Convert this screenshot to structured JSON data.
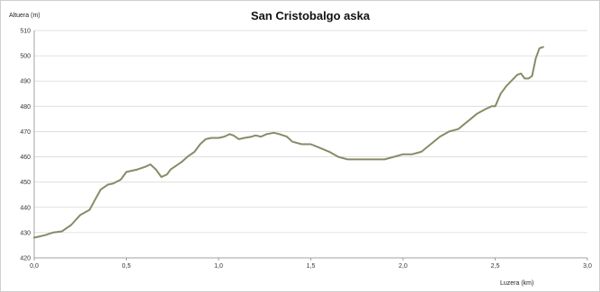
{
  "chart_data": {
    "type": "line",
    "title": "San Cristobalgo aska",
    "ylabel": "Altuera (m)",
    "xlabel": "Luzera (km)",
    "xlim": [
      0,
      3
    ],
    "ylim": [
      420,
      510
    ],
    "x_ticks": [
      "0,0",
      "0,5",
      "1,0",
      "1,5",
      "2,0",
      "2,5",
      "3,0"
    ],
    "x_tick_values": [
      0,
      0.5,
      1.0,
      1.5,
      2.0,
      2.5,
      3.0
    ],
    "y_ticks": [
      "510",
      "500",
      "490",
      "480",
      "470",
      "460",
      "450",
      "440",
      "430",
      "420"
    ],
    "y_tick_values": [
      510,
      500,
      490,
      480,
      470,
      460,
      450,
      440,
      430,
      420
    ],
    "grid": "horizontal",
    "legend": "none",
    "series": [
      {
        "color": "#8a8a68",
        "x": [
          0.0,
          0.03,
          0.06,
          0.1,
          0.15,
          0.2,
          0.25,
          0.3,
          0.33,
          0.36,
          0.4,
          0.43,
          0.47,
          0.5,
          0.53,
          0.56,
          0.6,
          0.63,
          0.66,
          0.69,
          0.72,
          0.74,
          0.76,
          0.8,
          0.83,
          0.87,
          0.9,
          0.93,
          0.96,
          1.0,
          1.03,
          1.06,
          1.08,
          1.11,
          1.14,
          1.18,
          1.2,
          1.23,
          1.26,
          1.3,
          1.33,
          1.37,
          1.4,
          1.45,
          1.5,
          1.55,
          1.6,
          1.65,
          1.7,
          1.75,
          1.8,
          1.85,
          1.9,
          1.95,
          2.0,
          2.05,
          2.1,
          2.15,
          2.2,
          2.25,
          2.3,
          2.35,
          2.4,
          2.45,
          2.48,
          2.5,
          2.53,
          2.56,
          2.6,
          2.62,
          2.64,
          2.66,
          2.68,
          2.7,
          2.72,
          2.74,
          2.76
        ],
        "y": [
          428,
          428.5,
          429,
          430,
          430.5,
          433,
          437,
          439,
          443,
          447,
          449,
          449.5,
          451,
          454,
          454.5,
          455,
          456,
          457,
          455,
          452,
          453,
          455,
          456,
          458,
          460,
          462,
          465,
          467,
          467.5,
          467.5,
          468,
          469,
          468.5,
          467,
          467.5,
          468,
          468.5,
          468,
          469,
          469.5,
          469,
          468,
          466,
          465,
          465,
          463.5,
          462,
          460,
          459,
          459,
          459,
          459,
          459,
          460,
          461,
          461,
          462,
          465,
          468,
          470,
          471,
          474,
          477,
          479,
          480,
          480,
          485,
          488,
          491,
          492.5,
          493,
          491,
          491,
          492,
          499,
          503,
          503.5
        ]
      }
    ]
  }
}
